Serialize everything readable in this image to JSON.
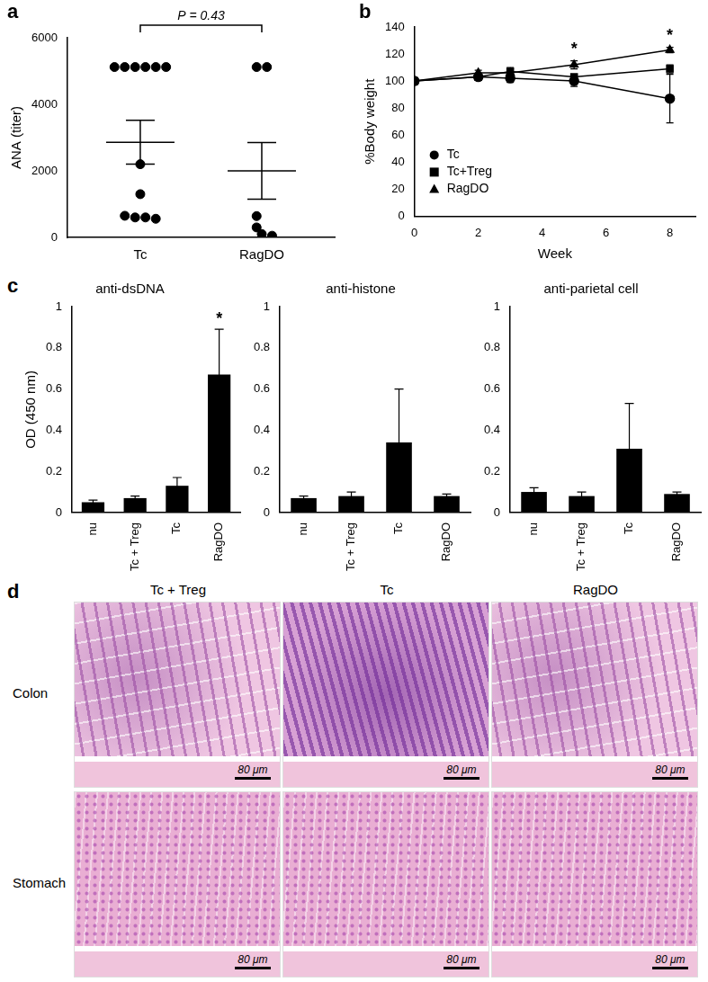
{
  "chart_data": [
    {
      "label": "a",
      "type": "scatter",
      "y_label": "ANA (titer)",
      "categories": [
        "Tc",
        "RagDO"
      ],
      "values": [
        [
          5120,
          5120,
          5120,
          5120,
          5120,
          5120,
          2200,
          1300,
          650,
          600,
          600,
          560
        ],
        [
          5120,
          5120,
          640,
          300,
          100,
          50
        ]
      ],
      "mean": [
        2860,
        2000
      ],
      "sem": [
        660,
        850
      ],
      "ylim": [
        0,
        6000
      ],
      "yticks": [
        0,
        2000,
        4000,
        6000
      ],
      "grid": false,
      "marker": "circle",
      "color": "#000000",
      "annotations": [
        {
          "text": "P = 0.43",
          "between": [
            "Tc",
            "RagDO"
          ]
        }
      ]
    },
    {
      "label": "b",
      "type": "line",
      "x_label": "Week",
      "y_label": "%Body weight",
      "x": [
        0,
        2,
        3,
        5,
        8
      ],
      "xlim": [
        0,
        8.8
      ],
      "xticks": [
        0,
        2,
        4,
        6,
        8
      ],
      "ylim": [
        0,
        140
      ],
      "yticks": [
        0,
        20,
        40,
        60,
        80,
        100,
        120,
        140
      ],
      "grid": false,
      "legend": "lower left",
      "series": [
        {
          "name": "Tc",
          "color": "#000000",
          "marker": "circle",
          "values": [
            100,
            103,
            102,
            100,
            87
          ],
          "errors": [
            0,
            2,
            3,
            4,
            18
          ]
        },
        {
          "name": "Tc+Treg",
          "color": "#000000",
          "marker": "square",
          "values": [
            100,
            103,
            107,
            103,
            109
          ],
          "errors": [
            0,
            2,
            3,
            2,
            3
          ]
        },
        {
          "name": "RagDO",
          "color": "#000000",
          "marker": "triangle",
          "values": [
            100,
            106,
            106,
            112,
            123
          ],
          "errors": [
            0,
            2,
            3,
            3,
            2
          ]
        }
      ],
      "annotations": [
        {
          "text": "*",
          "x": 5
        },
        {
          "text": "*",
          "x": 8
        }
      ]
    },
    {
      "label": "c",
      "type": "bar",
      "title": "anti-dsDNA",
      "y_label": "OD (450 nm)",
      "categories": [
        "nu",
        "Tc + Treg",
        "Tc",
        "RagDO"
      ],
      "values": [
        0.05,
        0.07,
        0.13,
        0.67
      ],
      "errors": [
        0.01,
        0.01,
        0.04,
        0.22
      ],
      "color": "#000000",
      "ylim": [
        0,
        1
      ],
      "yticks": [
        0,
        0.2,
        0.4,
        0.6,
        0.8,
        1
      ],
      "grid": false,
      "annotations": [
        {
          "text": "*",
          "category": "RagDO"
        }
      ]
    },
    {
      "type": "bar",
      "title": "anti-histone",
      "categories": [
        "nu",
        "Tc + Treg",
        "Tc",
        "RagDO"
      ],
      "values": [
        0.07,
        0.08,
        0.34,
        0.08
      ],
      "errors": [
        0.01,
        0.02,
        0.26,
        0.01
      ],
      "color": "#000000",
      "ylim": [
        0,
        1
      ],
      "yticks": [
        0,
        0.2,
        0.4,
        0.6,
        0.8,
        1
      ],
      "grid": false
    },
    {
      "type": "bar",
      "title": "anti-parietal cell",
      "categories": [
        "nu",
        "Tc + Treg",
        "Tc",
        "RagDO"
      ],
      "values": [
        0.1,
        0.08,
        0.31,
        0.09
      ],
      "errors": [
        0.02,
        0.02,
        0.22,
        0.01
      ],
      "color": "#000000",
      "ylim": [
        0,
        1
      ],
      "yticks": [
        0,
        0.2,
        0.4,
        0.6,
        0.8,
        1
      ],
      "grid": false
    }
  ],
  "image_panel": {
    "label": "d",
    "columns": [
      "Tc + Treg",
      "Tc",
      "RagDO"
    ],
    "rows": [
      "Colon",
      "Stomach"
    ],
    "scale_bar": "80 μm"
  }
}
